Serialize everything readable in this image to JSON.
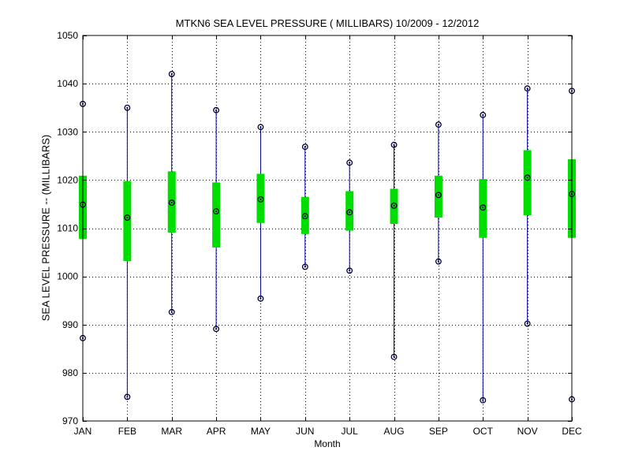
{
  "chart_data": {
    "type": "box",
    "title": "MTKN6  SEA LEVEL PRESSURE ( MILLIBARS) 10/2009 - 12/2012",
    "xlabel": "Month",
    "ylabel": "SEA LEVEL PRESSURE -- (MILLIBARS)",
    "ylim": [
      970,
      1050
    ],
    "yticks": [
      970,
      980,
      990,
      1000,
      1010,
      1020,
      1030,
      1040,
      1050
    ],
    "grid": true,
    "categories": [
      "JAN",
      "FEB",
      "MAR",
      "APR",
      "MAY",
      "JUN",
      "JUL",
      "AUG",
      "SEP",
      "OCT",
      "NOV",
      "DEC"
    ],
    "series": [
      {
        "min": [
          987.2,
          975.0,
          992.6,
          989.1,
          995.4,
          1002.0,
          1001.2,
          983.3,
          1003.1,
          974.3,
          990.2,
          974.5
        ],
        "q1": [
          1007.8,
          1003.2,
          1009.1,
          1006.0,
          1011.1,
          1008.8,
          1009.5,
          1010.9,
          1012.2,
          1008.0,
          1012.7,
          1008.0
        ],
        "median": [
          1014.9,
          1012.2,
          1015.3,
          1013.5,
          1016.0,
          1012.5,
          1013.3,
          1014.7,
          1016.9,
          1014.3,
          1020.5,
          1017.1
        ],
        "q3": [
          1020.9,
          1019.8,
          1021.8,
          1019.5,
          1021.3,
          1016.5,
          1017.7,
          1018.2,
          1020.9,
          1020.2,
          1026.2,
          1024.3
        ],
        "max": [
          1035.8,
          1035.0,
          1042.0,
          1034.5,
          1031.0,
          1026.9,
          1023.6,
          1027.3,
          1031.5,
          1033.5,
          1039.0,
          1038.5
        ]
      }
    ],
    "colors": {
      "box": "#00dd00",
      "whisker": "#0000aa",
      "marker": "#000033",
      "grid": "#000000"
    }
  }
}
